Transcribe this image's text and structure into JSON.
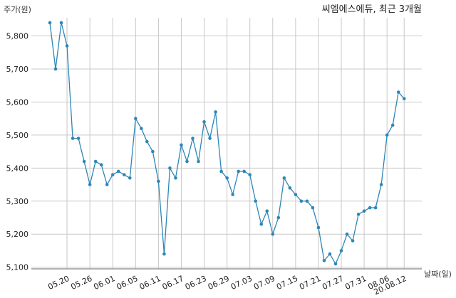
{
  "chart_data": {
    "type": "line",
    "title": "씨엠에스에듀, 최근 3개월",
    "ylabel": "주가(원)",
    "xlabel": "날짜(일)",
    "ylim": [
      5095,
      5855
    ],
    "yticks": [
      5100,
      5200,
      5300,
      5400,
      5500,
      5600,
      5700,
      5800
    ],
    "ytick_labels": [
      "5,100",
      "5,200",
      "5,300",
      "5,400",
      "5,500",
      "5,600",
      "5,700",
      "5,800"
    ],
    "grid": true,
    "color": "#2e86b6",
    "x_tick_labels": [
      {
        "index": 3,
        "label": "05.20"
      },
      {
        "index": 7,
        "label": "05.26"
      },
      {
        "index": 11,
        "label": "06.01"
      },
      {
        "index": 15,
        "label": "06.05"
      },
      {
        "index": 19,
        "label": "06.11"
      },
      {
        "index": 23,
        "label": "06.17"
      },
      {
        "index": 27,
        "label": "06.23"
      },
      {
        "index": 31,
        "label": "06.29"
      },
      {
        "index": 35,
        "label": "07.03"
      },
      {
        "index": 39,
        "label": "07.09"
      },
      {
        "index": 43,
        "label": "07.15"
      },
      {
        "index": 47,
        "label": "07.21"
      },
      {
        "index": 51,
        "label": "07.27"
      },
      {
        "index": 55,
        "label": "07.31"
      },
      {
        "index": 59,
        "label": "08.06"
      },
      {
        "index": 62,
        "label": "20.08.12"
      }
    ],
    "series": [
      {
        "values": [
          5840,
          5700,
          5840,
          5770,
          5490,
          5490,
          5420,
          5350,
          5420,
          5410,
          5350,
          5380,
          5390,
          5380,
          5370,
          5550,
          5520,
          5480,
          5450,
          5360,
          5140,
          5400,
          5370,
          5470,
          5420,
          5490,
          5420,
          5540,
          5490,
          5570,
          5390,
          5370,
          5320,
          5390,
          5390,
          5380,
          5300,
          5230,
          5270,
          5200,
          5250,
          5370,
          5340,
          5320,
          5300,
          5300,
          5280,
          5220,
          5120,
          5140,
          5110,
          5150,
          5200,
          5180,
          5260,
          5270,
          5280,
          5280,
          5350,
          5500,
          5530,
          5630,
          5610
        ]
      }
    ]
  }
}
